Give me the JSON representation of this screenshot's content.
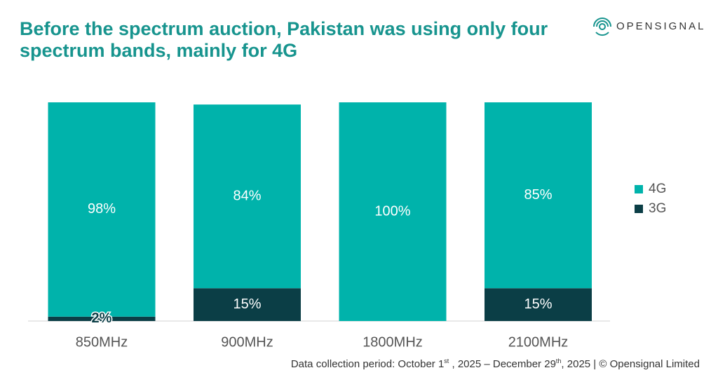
{
  "chart_data": {
    "type": "stacked_bar",
    "title": "Before the spectrum auction, Pakistan was using only four spectrum bands, mainly for 4G",
    "logo": "OPENSIGNAL",
    "categories": [
      "850MHz",
      "900MHz",
      "1800MHz",
      "2100MHz"
    ],
    "series": [
      {
        "name": "4G",
        "color": "#00b3ab",
        "values": [
          98,
          84,
          100,
          85
        ],
        "value_labels": [
          "98%",
          "84%",
          "100%",
          "85%"
        ]
      },
      {
        "name": "3G",
        "color": "#0b3e46",
        "values": [
          2,
          15,
          0,
          15
        ],
        "value_labels": [
          "2%",
          "15%",
          null,
          "15%"
        ]
      }
    ],
    "ylim": [
      0,
      100
    ],
    "legend": "right",
    "footnote": [
      "Data collection period: October 1",
      "st",
      " , 2025 – December 29",
      "th",
      ", 2025 | © Opensignal Limited"
    ]
  }
}
